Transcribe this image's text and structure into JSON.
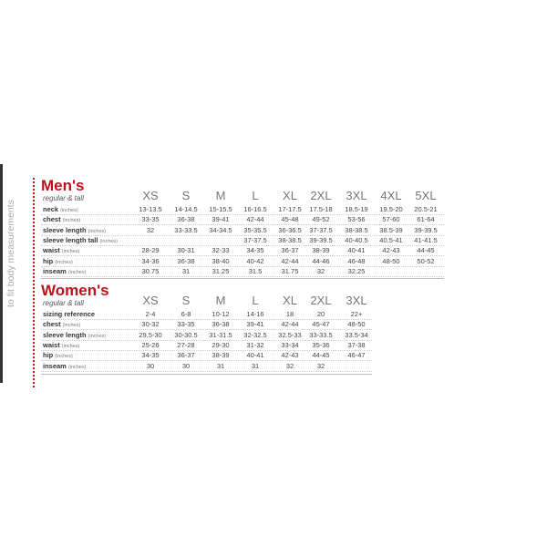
{
  "side_label": "to fit body measurements",
  "men": {
    "title": "Men's",
    "subtitle": "regular & tall",
    "sizes": [
      "XS",
      "S",
      "M",
      "L",
      "XL",
      "2XL",
      "3XL",
      "4XL",
      "5XL"
    ],
    "rows": [
      {
        "label": "neck",
        "unit": "(inches)",
        "values": [
          "13-13.5",
          "14-14.5",
          "15-15.5",
          "16-16.5",
          "17-17.5",
          "17.5-18",
          "18.5-19",
          "19.5-20",
          "20.5-21"
        ]
      },
      {
        "label": "chest",
        "unit": "(inches)",
        "values": [
          "33-35",
          "36-38",
          "39-41",
          "42-44",
          "45-48",
          "49-52",
          "53-56",
          "57-60",
          "61-64"
        ]
      },
      {
        "label": "sleeve length",
        "unit": "(inches)",
        "values": [
          "32",
          "33-33.5",
          "34-34.5",
          "35-35.5",
          "36-36.5",
          "37-37.5",
          "38-38.5",
          "38.5-39",
          "39-39.5"
        ]
      },
      {
        "label": "sleeve length tall",
        "unit": "(inches)",
        "values": [
          "",
          "",
          "",
          "37-37.5",
          "38-38.5",
          "39-39.5",
          "40-40.5",
          "40.5-41",
          "41-41.5"
        ]
      },
      {
        "label": "waist",
        "unit": "(inches)",
        "values": [
          "28-29",
          "30-31",
          "32-33",
          "34-35",
          "36-37",
          "38-39",
          "40-41",
          "42-43",
          "44-45"
        ]
      },
      {
        "label": "hip",
        "unit": "(inches)",
        "values": [
          "34-36",
          "36-38",
          "38-40",
          "40-42",
          "42-44",
          "44-46",
          "46-48",
          "48-50",
          "50-52"
        ]
      },
      {
        "label": "inseam",
        "unit": "(inches)",
        "values": [
          "30.75",
          "31",
          "31.25",
          "31.5",
          "31.75",
          "32",
          "32.25",
          "",
          ""
        ]
      }
    ]
  },
  "women": {
    "title": "Women's",
    "subtitle": "regular & tall",
    "sizes": [
      "XS",
      "S",
      "M",
      "L",
      "XL",
      "2XL",
      "3XL"
    ],
    "rows": [
      {
        "label": "sizing reference",
        "unit": "",
        "values": [
          "2-4",
          "6-8",
          "10-12",
          "14-16",
          "18",
          "20",
          "22+"
        ]
      },
      {
        "label": "chest",
        "unit": "(inches)",
        "values": [
          "30-32",
          "33-35",
          "36-38",
          "39-41",
          "42-44",
          "45-47",
          "48-50"
        ]
      },
      {
        "label": "sleeve length",
        "unit": "(inches)",
        "values": [
          "29.5-30",
          "30-30.5",
          "31-31.5",
          "32-32.5",
          "32.5-33",
          "33-33.5",
          "33.5-34"
        ]
      },
      {
        "label": "waist",
        "unit": "(inches)",
        "values": [
          "25-26",
          "27-28",
          "29-30",
          "31-32",
          "33-34",
          "35-36",
          "37-38"
        ]
      },
      {
        "label": "hip",
        "unit": "(inches)",
        "values": [
          "34-35",
          "36-37",
          "38-39",
          "40-41",
          "42-43",
          "44-45",
          "46-47"
        ]
      },
      {
        "label": "inseam",
        "unit": "(inches)",
        "values": [
          "30",
          "30",
          "31",
          "31",
          "32",
          "32",
          ""
        ]
      }
    ]
  }
}
